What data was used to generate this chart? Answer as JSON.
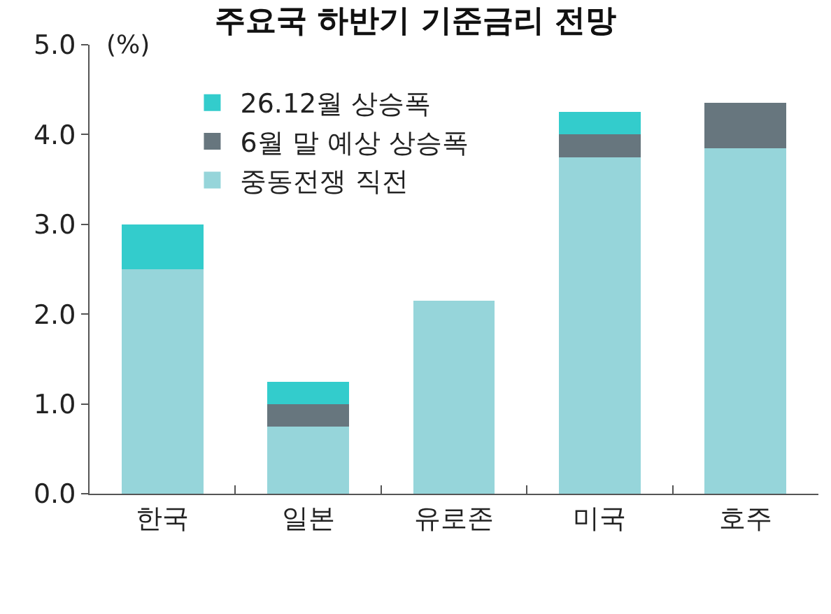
{
  "chart_data": {
    "type": "bar",
    "title": "주요국 하반기 기준금리 전망",
    "ylabel": "(%)",
    "categories": [
      "한국",
      "일본",
      "유로존",
      "미국",
      "호주"
    ],
    "stacked": true,
    "series": [
      {
        "name": "중동전쟁 직전",
        "color": "#96d5da",
        "values": [
          2.5,
          0.75,
          2.15,
          3.75,
          3.85
        ]
      },
      {
        "name": "6월 말 예상 상승폭",
        "color": "#67767e",
        "values": [
          0,
          0.25,
          0,
          0.25,
          0.5
        ]
      },
      {
        "name": "26.12월 상승폭",
        "color": "#33cccc",
        "values": [
          0.5,
          0.25,
          0,
          0.25,
          0
        ]
      }
    ],
    "ylim": [
      0,
      5
    ],
    "yticks": [
      {
        "value": 0,
        "label": "0.0"
      },
      {
        "value": 1,
        "label": "1.0"
      },
      {
        "value": 2,
        "label": "2.0"
      },
      {
        "value": 3,
        "label": "3.0"
      },
      {
        "value": 4,
        "label": "4.0"
      },
      {
        "value": 5,
        "label": "5.0"
      }
    ],
    "legend": "top left"
  }
}
